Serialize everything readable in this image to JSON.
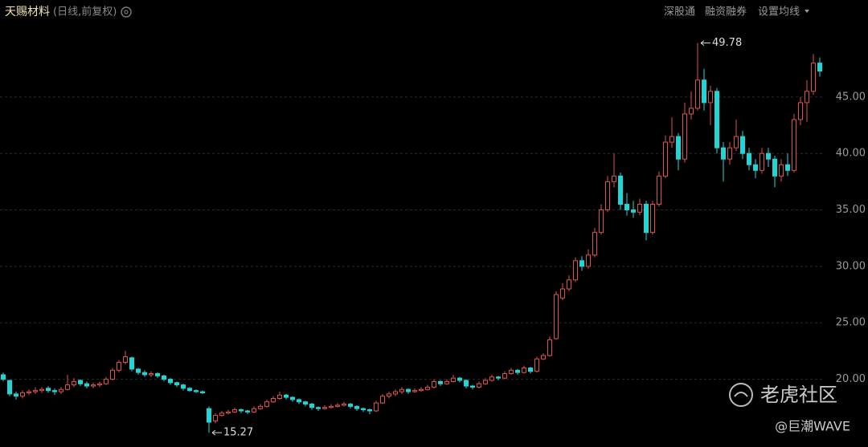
{
  "chart_data": {
    "type": "candlestick",
    "title": "天赐材料",
    "subtitle": "(日线,前复权)",
    "toolbar": [
      "深股通",
      "融资融券",
      "设置均线"
    ],
    "watermark": [
      "老虎社区",
      "@巨潮WAVE"
    ],
    "up_color": "#e0504f",
    "down_color": "#1fd6d6",
    "grid": true,
    "ylim": [
      14,
      51.6
    ],
    "yticks": [
      {
        "value": 20,
        "label": "20.00"
      },
      {
        "value": 25,
        "label": "25.00"
      },
      {
        "value": 30,
        "label": "30.00"
      },
      {
        "value": 35,
        "label": "35.00"
      },
      {
        "value": 40,
        "label": "40.00"
      },
      {
        "value": 45,
        "label": "45.00"
      }
    ],
    "open": [
      20.4,
      19.9,
      18.7,
      18.5,
      18.8,
      18.9,
      19.0,
      19.2,
      19.0,
      18.9,
      19.1,
      19.5,
      19.9,
      19.6,
      19.4,
      19.5,
      19.6,
      20.0,
      20.8,
      21.5,
      21.9,
      20.9,
      20.6,
      20.4,
      20.5,
      20.3,
      20.0,
      19.7,
      19.5,
      19.2,
      19.0,
      18.9,
      17.4,
      16.3,
      16.8,
      17.0,
      17.1,
      17.3,
      17.2,
      17.1,
      17.4,
      17.6,
      18.0,
      18.3,
      18.6,
      18.4,
      18.2,
      18.0,
      17.8,
      17.5,
      17.4,
      17.5,
      17.6,
      17.7,
      17.8,
      17.6,
      17.4,
      17.3,
      17.2,
      17.9,
      18.5,
      18.7,
      18.9,
      19.1,
      18.9,
      19.0,
      19.1,
      19.3,
      19.8,
      19.6,
      19.8,
      20.1,
      19.9,
      19.4,
      19.3,
      19.6,
      19.9,
      20.2,
      20.1,
      20.5,
      20.8,
      20.6,
      21.0,
      20.7,
      21.8,
      22.1,
      23.6,
      27.2,
      28.0,
      28.8,
      30.5,
      30.0,
      31.0,
      33.0,
      35.0,
      37.5,
      38.0,
      35.5,
      35.0,
      34.8,
      35.5,
      33.0,
      35.5,
      38.0,
      41.0,
      41.5,
      39.5,
      43.5,
      44.0,
      46.5,
      44.5,
      45.5,
      40.5,
      39.5,
      40.5,
      41.5,
      40.0,
      39.0,
      38.5,
      40.0,
      39.5,
      38.0,
      39.0,
      38.5,
      43.0,
      44.5,
      45.5,
      48.0
    ],
    "high": [
      20.6,
      19.9,
      18.9,
      19.0,
      19.1,
      19.3,
      19.3,
      19.4,
      19.2,
      19.3,
      20.4,
      20.1,
      20.0,
      19.8,
      19.7,
      19.8,
      20.2,
      21.0,
      21.7,
      22.5,
      22.0,
      21.0,
      20.8,
      20.7,
      20.6,
      20.4,
      20.1,
      19.8,
      19.6,
      19.3,
      19.1,
      19.0,
      17.6,
      17.0,
      17.2,
      17.3,
      17.5,
      17.4,
      17.3,
      17.6,
      17.8,
      18.2,
      18.5,
      18.9,
      18.7,
      18.5,
      18.3,
      18.1,
      17.9,
      17.6,
      17.7,
      17.8,
      17.9,
      18.0,
      17.9,
      17.7,
      17.5,
      17.4,
      18.1,
      18.7,
      18.9,
      19.1,
      19.3,
      19.2,
      19.2,
      19.3,
      19.5,
      20.0,
      19.9,
      20.0,
      20.4,
      20.2,
      20.0,
      19.5,
      19.8,
      20.1,
      20.4,
      20.3,
      20.7,
      21.0,
      20.9,
      21.2,
      21.1,
      22.0,
      22.3,
      23.8,
      27.8,
      28.5,
      29.2,
      30.8,
      30.9,
      31.5,
      33.4,
      35.5,
      38.0,
      40.0,
      38.3,
      36.5,
      35.8,
      36.0,
      35.8,
      35.8,
      38.4,
      41.6,
      43.2,
      41.8,
      44.5,
      45.5,
      49.78,
      47.5,
      46.0,
      45.8,
      41.0,
      41.0,
      43.0,
      42.0,
      40.5,
      39.5,
      40.5,
      40.5,
      39.8,
      39.5,
      40.0,
      43.5,
      45.0,
      46.5,
      48.8,
      48.5
    ],
    "low": [
      19.8,
      18.5,
      18.2,
      18.3,
      18.6,
      18.7,
      18.8,
      18.8,
      18.6,
      18.7,
      19.0,
      19.3,
      19.4,
      19.2,
      19.2,
      19.3,
      19.5,
      19.9,
      20.6,
      21.3,
      20.7,
      20.4,
      20.2,
      20.2,
      20.1,
      19.8,
      19.5,
      19.3,
      19.0,
      18.9,
      18.8,
      18.7,
      15.27,
      16.1,
      16.7,
      16.9,
      17.0,
      17.0,
      16.9,
      17.0,
      17.3,
      17.5,
      17.9,
      18.2,
      18.2,
      18.0,
      17.8,
      17.6,
      17.3,
      17.2,
      17.3,
      17.4,
      17.5,
      17.6,
      17.4,
      17.2,
      17.1,
      16.9,
      17.1,
      17.8,
      18.3,
      18.5,
      18.7,
      18.7,
      18.8,
      18.9,
      19.0,
      19.2,
      19.4,
      19.5,
      19.7,
      19.7,
      19.2,
      19.1,
      19.2,
      19.5,
      19.8,
      19.9,
      20.0,
      20.4,
      20.4,
      20.5,
      20.5,
      20.6,
      21.7,
      22.0,
      23.5,
      27.0,
      27.8,
      28.6,
      29.6,
      29.8,
      30.8,
      32.8,
      34.8,
      37.0,
      35.0,
      34.5,
      34.3,
      34.5,
      32.3,
      32.8,
      35.3,
      37.8,
      40.5,
      38.5,
      39.2,
      43.0,
      43.8,
      43.8,
      42.5,
      40.0,
      37.5,
      39.0,
      40.2,
      39.5,
      38.5,
      37.8,
      38.2,
      38.8,
      37.0,
      37.5,
      38.0,
      38.3,
      42.5,
      42.8,
      45.2,
      46.8
    ],
    "close": [
      20.0,
      18.7,
      18.5,
      18.8,
      18.9,
      19.0,
      19.1,
      19.0,
      18.9,
      19.1,
      19.5,
      19.8,
      19.6,
      19.4,
      19.5,
      19.6,
      20.0,
      20.8,
      21.5,
      22.0,
      20.9,
      20.6,
      20.4,
      20.5,
      20.3,
      20.0,
      19.7,
      19.5,
      19.2,
      19.0,
      18.9,
      18.8,
      16.2,
      16.8,
      17.0,
      17.1,
      17.3,
      17.2,
      17.1,
      17.4,
      17.6,
      18.0,
      18.3,
      18.6,
      18.4,
      18.2,
      18.0,
      17.8,
      17.5,
      17.4,
      17.5,
      17.6,
      17.7,
      17.8,
      17.6,
      17.4,
      17.3,
      17.2,
      17.9,
      18.5,
      18.7,
      18.9,
      19.1,
      18.9,
      19.0,
      19.1,
      19.3,
      19.8,
      19.6,
      19.8,
      20.1,
      19.9,
      19.4,
      19.3,
      19.6,
      19.9,
      20.2,
      20.1,
      20.5,
      20.8,
      20.6,
      21.0,
      20.7,
      21.8,
      22.1,
      23.5,
      27.5,
      28.0,
      28.8,
      30.5,
      30.0,
      31.0,
      33.0,
      35.0,
      37.5,
      38.0,
      35.5,
      35.0,
      34.8,
      35.5,
      33.0,
      35.5,
      38.0,
      41.0,
      41.5,
      39.5,
      43.5,
      44.0,
      46.5,
      44.5,
      45.5,
      40.5,
      39.5,
      40.5,
      41.5,
      40.0,
      39.0,
      38.5,
      40.0,
      39.5,
      38.0,
      39.0,
      38.5,
      43.0,
      44.5,
      45.5,
      48.0,
      47.3
    ]
  }
}
